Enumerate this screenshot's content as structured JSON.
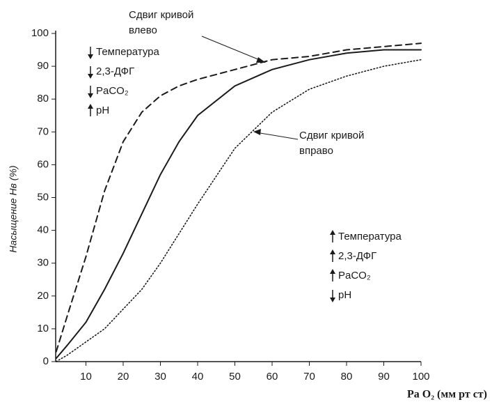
{
  "chart_data": {
    "type": "line",
    "x_label": "Pa O₂ (мм рт ст)",
    "y_label": "Насыщение Hв (%)",
    "x": [
      2,
      5,
      10,
      15,
      20,
      25,
      30,
      35,
      40,
      50,
      60,
      70,
      80,
      90,
      100
    ],
    "series": [
      {
        "color": "#1a1a1a",
        "dash": "solid",
        "values": [
          1,
          5,
          12,
          22,
          33,
          45,
          57,
          67,
          75,
          84,
          89,
          92,
          94,
          95,
          95
        ]
      },
      {
        "color": "#1a1a1a",
        "dash": "dashed",
        "values": [
          3,
          14,
          32,
          52,
          67,
          76,
          81,
          84,
          86,
          89,
          92,
          93,
          95,
          96,
          97
        ]
      },
      {
        "color": "#1a1a1a",
        "dash": "dotted",
        "values": [
          0,
          2,
          6,
          10,
          16,
          22,
          30,
          39,
          48,
          65,
          76,
          83,
          87,
          90,
          92
        ]
      }
    ],
    "xlim": [
      0,
      100
    ],
    "ylim": [
      0,
      100
    ],
    "xticks": [
      10,
      20,
      30,
      40,
      50,
      60,
      70,
      80,
      90,
      100
    ],
    "yticks": [
      0,
      10,
      20,
      30,
      40,
      50,
      60,
      70,
      80,
      90,
      100
    ],
    "grid": false,
    "annotations": [
      {
        "lines": [
          "Сдвиг кривой",
          "влево"
        ]
      },
      {
        "lines": [
          "Сдвиг кривой",
          "вправо"
        ]
      }
    ],
    "factor_boxes": [
      {
        "items": [
          {
            "text": "Температура",
            "direction": "down"
          },
          {
            "text": "2,3-ДФГ",
            "direction": "down"
          },
          {
            "text": "PaCO₂",
            "direction": "down"
          },
          {
            "text": "pH",
            "direction": "up"
          }
        ]
      },
      {
        "items": [
          {
            "text": "Температура",
            "direction": "up"
          },
          {
            "text": "2,3-ДФГ",
            "direction": "up"
          },
          {
            "text": "PaCO₂",
            "direction": "up"
          },
          {
            "text": "pH",
            "direction": "down"
          }
        ]
      }
    ]
  }
}
